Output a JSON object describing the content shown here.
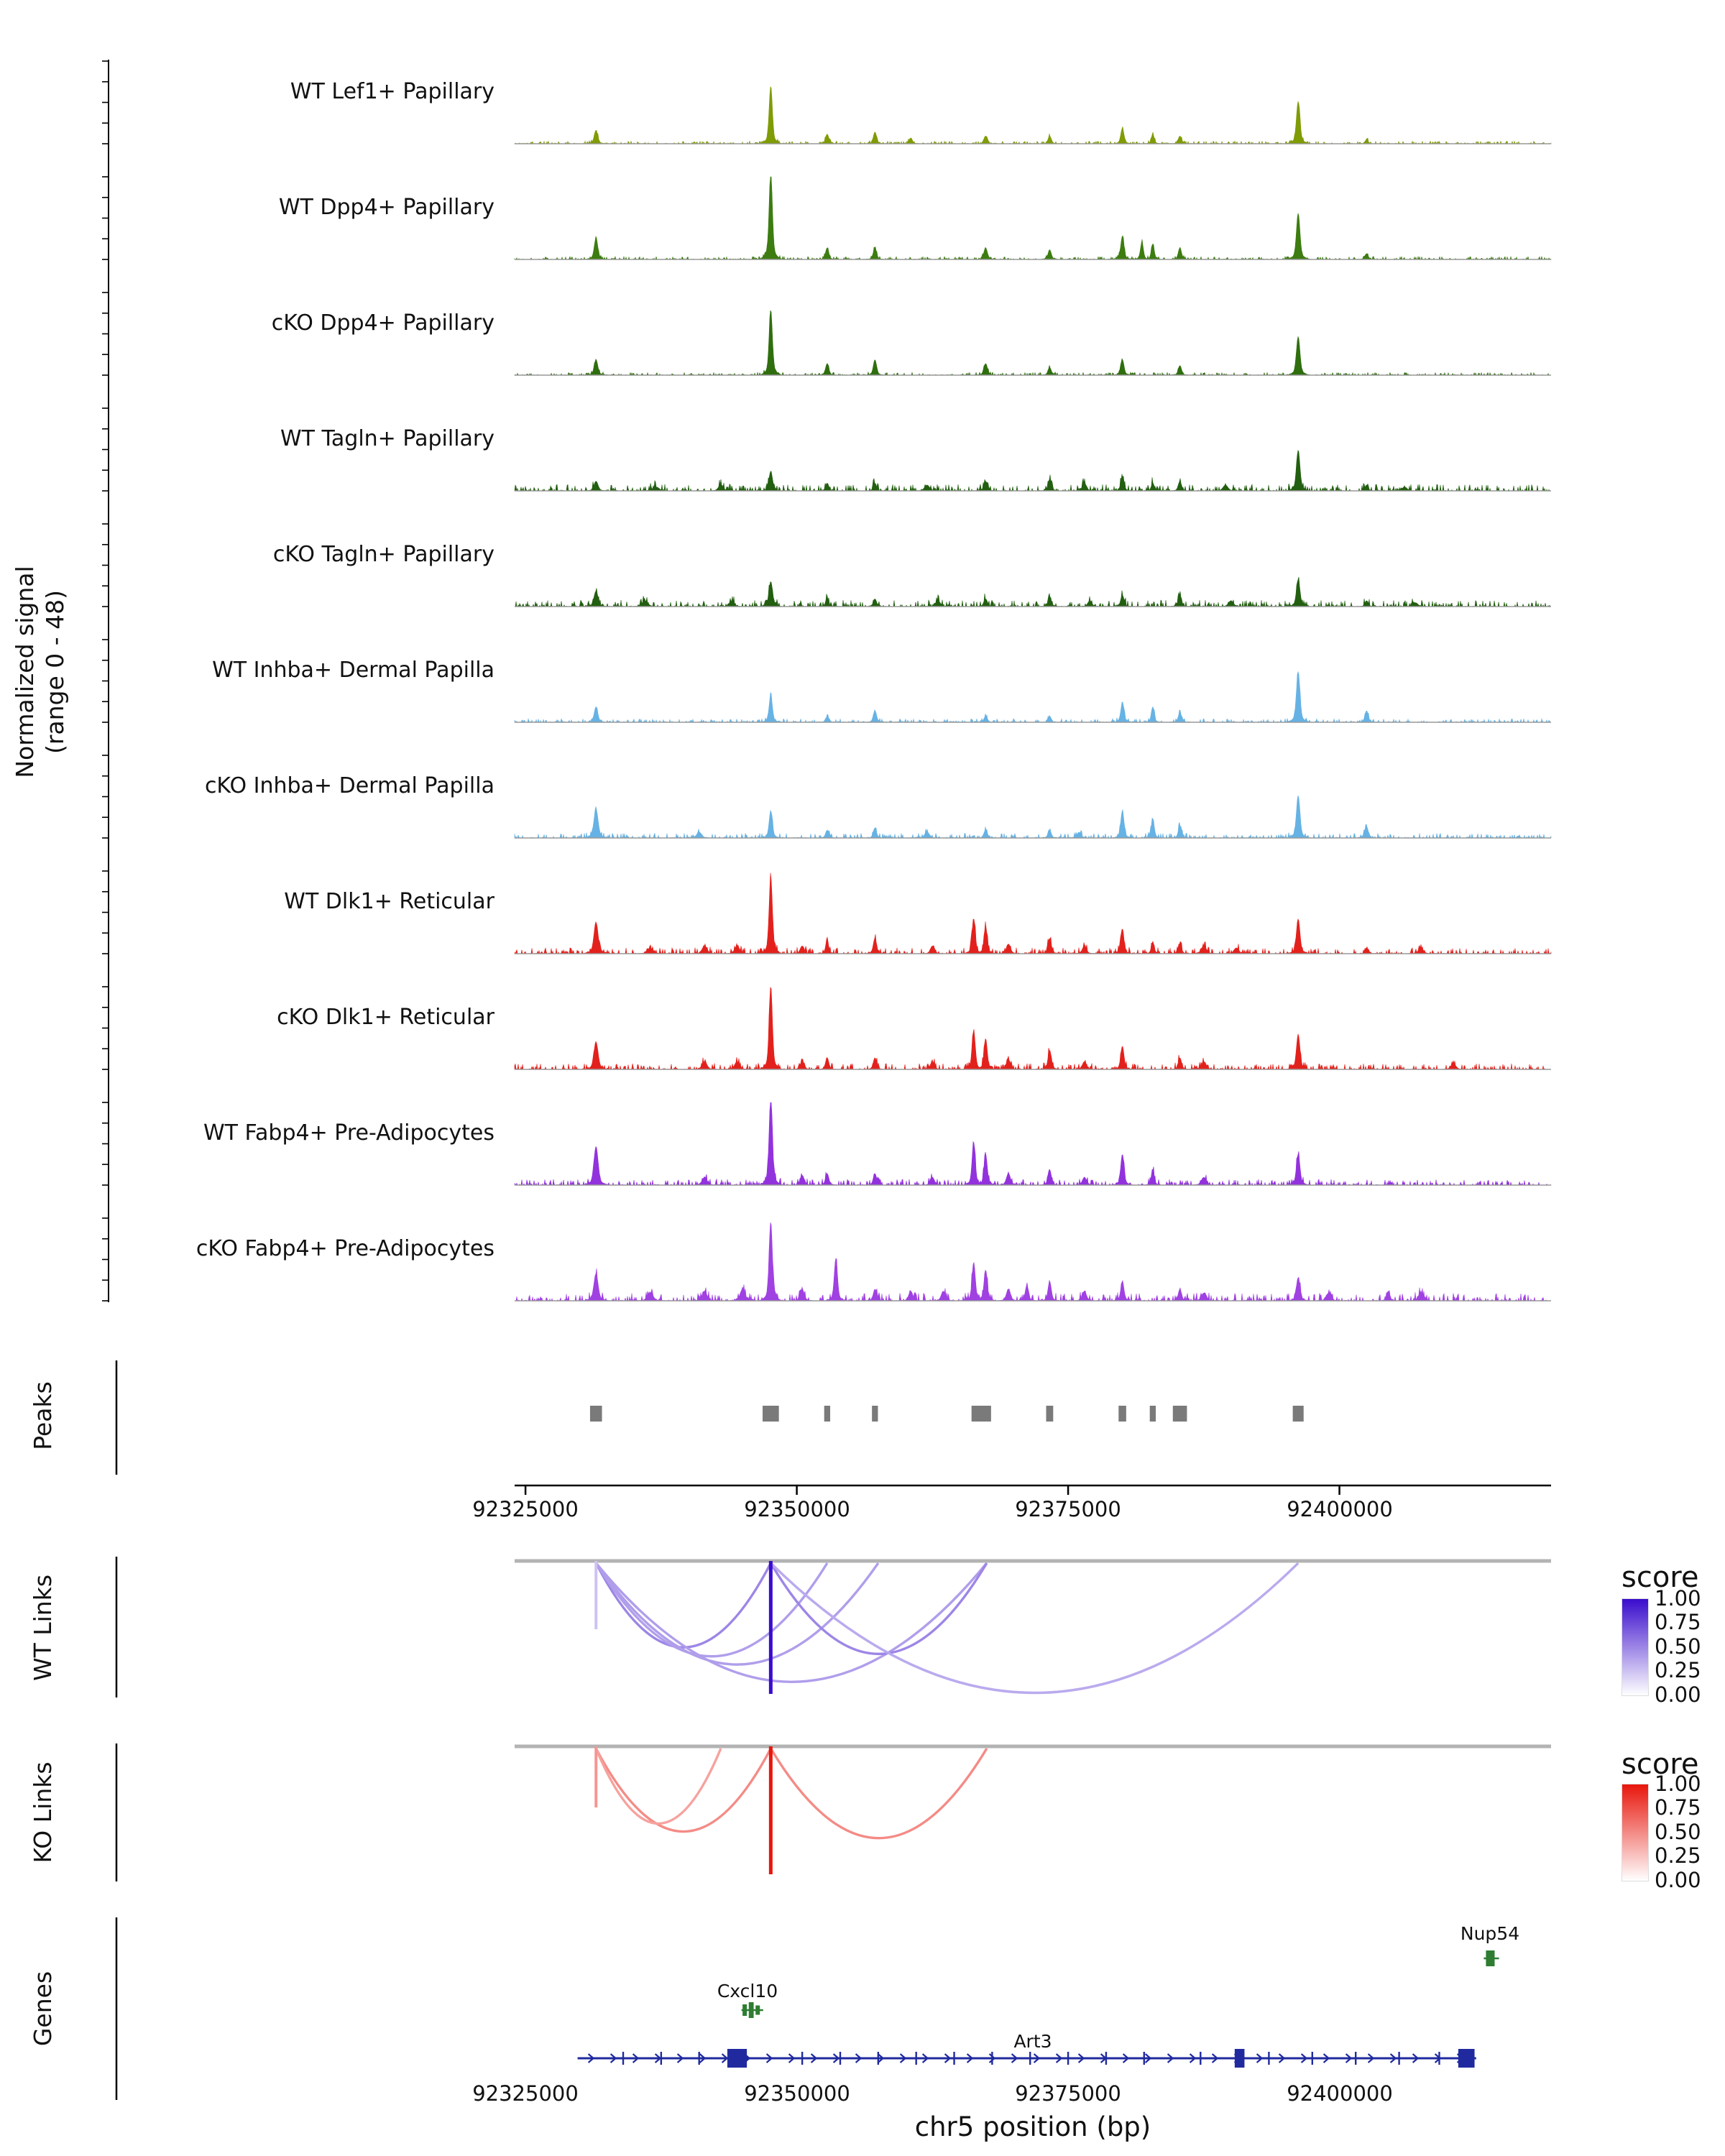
{
  "figure": {
    "background": "#ffffff",
    "y_axis_label_line1": "Normalized signal",
    "y_axis_label_line2": "(range 0 - 48)",
    "panel_labels": {
      "peaks": "Peaks",
      "wt_links": "WT Links",
      "ko_links": "KO Links",
      "genes": "Genes"
    },
    "x_axis_title": "chr5 position (bp)",
    "legend_title": "score"
  },
  "chart_data": {
    "type": "area",
    "variant": "genome-browser-coverage-tracks",
    "chrom": "chr5",
    "x_domain_bp": [
      92324000,
      92419500
    ],
    "x_ticks": [
      {
        "bp": 92325000,
        "label": "92325000"
      },
      {
        "bp": 92350000,
        "label": "92350000"
      },
      {
        "bp": 92375000,
        "label": "92375000"
      },
      {
        "bp": 92400000,
        "label": "92400000"
      }
    ],
    "signal_range": [
      0,
      48
    ],
    "tracks": [
      {
        "label": "WT Lef1+ Papillary",
        "color": "#7f9b06",
        "noise": 0.9,
        "peaks": [
          [
            92331500,
            7,
            220
          ],
          [
            92347600,
            30,
            200
          ],
          [
            92352800,
            5,
            200
          ],
          [
            92357200,
            6,
            200
          ],
          [
            92360500,
            3,
            200
          ],
          [
            92367400,
            4,
            220
          ],
          [
            92373300,
            4,
            200
          ],
          [
            92380000,
            8,
            200
          ],
          [
            92382800,
            5,
            180
          ],
          [
            92385300,
            4,
            200
          ],
          [
            92396200,
            22,
            220
          ],
          [
            92402500,
            2,
            200
          ]
        ]
      },
      {
        "label": "WT Dpp4+ Papillary",
        "color": "#3c7c10",
        "noise": 1.0,
        "peaks": [
          [
            92331500,
            11,
            220
          ],
          [
            92347600,
            46,
            200
          ],
          [
            92352800,
            6,
            200
          ],
          [
            92357200,
            6,
            200
          ],
          [
            92367400,
            6,
            220
          ],
          [
            92373300,
            5,
            200
          ],
          [
            92380000,
            12,
            200
          ],
          [
            92381800,
            9,
            180
          ],
          [
            92382800,
            8,
            180
          ],
          [
            92385300,
            6,
            200
          ],
          [
            92396200,
            24,
            220
          ],
          [
            92402500,
            3,
            200
          ]
        ]
      },
      {
        "label": "cKO Dpp4+ Papillary",
        "color": "#2f6e0e",
        "noise": 0.9,
        "peaks": [
          [
            92331500,
            8,
            220
          ],
          [
            92347600,
            34,
            200
          ],
          [
            92352800,
            6,
            200
          ],
          [
            92357200,
            8,
            200
          ],
          [
            92367400,
            6,
            220
          ],
          [
            92373300,
            4,
            200
          ],
          [
            92380000,
            8,
            200
          ],
          [
            92385300,
            5,
            200
          ],
          [
            92396200,
            20,
            220
          ]
        ]
      },
      {
        "label": "WT Tagln+ Papillary",
        "color": "#225f10",
        "noise": 2.2,
        "peaks": [
          [
            92331500,
            5,
            250
          ],
          [
            92337000,
            2,
            400
          ],
          [
            92343000,
            3,
            300
          ],
          [
            92347600,
            10,
            220
          ],
          [
            92352800,
            4,
            200
          ],
          [
            92357200,
            4,
            200
          ],
          [
            92362000,
            3,
            300
          ],
          [
            92367400,
            5,
            220
          ],
          [
            92373300,
            6,
            200
          ],
          [
            92376500,
            4,
            250
          ],
          [
            92380000,
            7,
            200
          ],
          [
            92382800,
            4,
            180
          ],
          [
            92385300,
            5,
            200
          ],
          [
            92389500,
            3,
            300
          ],
          [
            92396200,
            21,
            220
          ],
          [
            92402500,
            3,
            200
          ],
          [
            92406000,
            2,
            300
          ]
        ]
      },
      {
        "label": "cKO Tagln+ Papillary",
        "color": "#225f10",
        "noise": 2.2,
        "peaks": [
          [
            92331500,
            8,
            250
          ],
          [
            92336000,
            3,
            350
          ],
          [
            92344000,
            3,
            300
          ],
          [
            92347600,
            13,
            220
          ],
          [
            92352800,
            4,
            200
          ],
          [
            92357200,
            4,
            200
          ],
          [
            92363000,
            3,
            300
          ],
          [
            92367400,
            4,
            220
          ],
          [
            92373300,
            5,
            200
          ],
          [
            92377000,
            3,
            250
          ],
          [
            92380000,
            6,
            200
          ],
          [
            92385300,
            6,
            200
          ],
          [
            92390000,
            3,
            300
          ],
          [
            92396200,
            14,
            220
          ],
          [
            92402500,
            3,
            200
          ],
          [
            92407000,
            2,
            300
          ]
        ]
      },
      {
        "label": "WT Inhba+ Dermal Papilla",
        "color": "#66b2e4",
        "noise": 1.2,
        "peaks": [
          [
            92331500,
            8,
            220
          ],
          [
            92347600,
            14,
            200
          ],
          [
            92352800,
            3,
            200
          ],
          [
            92357200,
            6,
            200
          ],
          [
            92367400,
            3,
            220
          ],
          [
            92373300,
            3,
            200
          ],
          [
            92380000,
            10,
            200
          ],
          [
            92382800,
            8,
            180
          ],
          [
            92385300,
            5,
            200
          ],
          [
            92396200,
            26,
            220
          ],
          [
            92402500,
            6,
            200
          ]
        ]
      },
      {
        "label": "cKO Inhba+ Dermal Papilla",
        "color": "#66b2e4",
        "noise": 1.6,
        "peaks": [
          [
            92331500,
            15,
            260
          ],
          [
            92341000,
            3,
            300
          ],
          [
            92347600,
            14,
            200
          ],
          [
            92352800,
            4,
            200
          ],
          [
            92357200,
            5,
            200
          ],
          [
            92362000,
            3,
            300
          ],
          [
            92367400,
            4,
            220
          ],
          [
            92373300,
            4,
            200
          ],
          [
            92376000,
            3,
            250
          ],
          [
            92380000,
            14,
            200
          ],
          [
            92382800,
            10,
            180
          ],
          [
            92385300,
            6,
            200
          ],
          [
            92396200,
            22,
            220
          ],
          [
            92402500,
            6,
            200
          ]
        ]
      },
      {
        "label": "WT Dlk1+ Reticular",
        "color": "#e3211c",
        "noise": 2.0,
        "peaks": [
          [
            92331500,
            16,
            260
          ],
          [
            92336500,
            3,
            350
          ],
          [
            92341500,
            4,
            300
          ],
          [
            92344500,
            4,
            300
          ],
          [
            92347600,
            40,
            200
          ],
          [
            92350500,
            4,
            250
          ],
          [
            92352800,
            6,
            200
          ],
          [
            92357200,
            8,
            200
          ],
          [
            92362500,
            4,
            250
          ],
          [
            92366300,
            18,
            200
          ],
          [
            92367400,
            14,
            200
          ],
          [
            92369500,
            5,
            250
          ],
          [
            92373300,
            8,
            200
          ],
          [
            92376500,
            4,
            250
          ],
          [
            92380000,
            12,
            200
          ],
          [
            92382800,
            6,
            180
          ],
          [
            92385300,
            5,
            200
          ],
          [
            92387500,
            4,
            300
          ],
          [
            92390500,
            3,
            300
          ],
          [
            92396200,
            18,
            220
          ],
          [
            92402500,
            3,
            200
          ],
          [
            92407500,
            3,
            300
          ]
        ]
      },
      {
        "label": "cKO Dlk1+ Reticular",
        "color": "#e3211c",
        "noise": 2.0,
        "peaks": [
          [
            92331500,
            14,
            260
          ],
          [
            92341500,
            4,
            300
          ],
          [
            92344500,
            4,
            300
          ],
          [
            92347600,
            43,
            200
          ],
          [
            92350500,
            4,
            250
          ],
          [
            92352800,
            6,
            200
          ],
          [
            92357200,
            6,
            200
          ],
          [
            92362500,
            4,
            250
          ],
          [
            92366300,
            20,
            200
          ],
          [
            92367400,
            16,
            200
          ],
          [
            92369500,
            5,
            250
          ],
          [
            92373300,
            10,
            200
          ],
          [
            92376500,
            4,
            250
          ],
          [
            92380000,
            12,
            200
          ],
          [
            92385300,
            6,
            200
          ],
          [
            92387500,
            4,
            300
          ],
          [
            92396200,
            18,
            220
          ],
          [
            92410500,
            3,
            300
          ]
        ]
      },
      {
        "label": "WT Fabp4+ Pre-Adipocytes",
        "color": "#9232dd",
        "noise": 2.0,
        "peaks": [
          [
            92331500,
            20,
            260
          ],
          [
            92341500,
            4,
            300
          ],
          [
            92347600,
            45,
            200
          ],
          [
            92350500,
            5,
            250
          ],
          [
            92352800,
            6,
            200
          ],
          [
            92357200,
            6,
            200
          ],
          [
            92362500,
            4,
            250
          ],
          [
            92366300,
            22,
            200
          ],
          [
            92367400,
            16,
            200
          ],
          [
            92369500,
            6,
            250
          ],
          [
            92373300,
            8,
            200
          ],
          [
            92376500,
            4,
            250
          ],
          [
            92380000,
            16,
            200
          ],
          [
            92382800,
            8,
            180
          ],
          [
            92387500,
            4,
            300
          ],
          [
            92396200,
            16,
            220
          ]
        ]
      },
      {
        "label": "cKO Fabp4+ Pre-Adipocytes",
        "color": "#a041e2",
        "noise": 2.6,
        "peaks": [
          [
            92331500,
            14,
            260
          ],
          [
            92336500,
            4,
            350
          ],
          [
            92341500,
            5,
            300
          ],
          [
            92345000,
            6,
            300
          ],
          [
            92347600,
            41,
            200
          ],
          [
            92350500,
            6,
            250
          ],
          [
            92353600,
            22,
            200
          ],
          [
            92357200,
            6,
            200
          ],
          [
            92360500,
            5,
            250
          ],
          [
            92363500,
            5,
            250
          ],
          [
            92366300,
            20,
            200
          ],
          [
            92367400,
            16,
            200
          ],
          [
            92369500,
            6,
            250
          ],
          [
            92371200,
            8,
            200
          ],
          [
            92373300,
            10,
            200
          ],
          [
            92376500,
            5,
            250
          ],
          [
            92380000,
            10,
            200
          ],
          [
            92385300,
            6,
            200
          ],
          [
            92387500,
            4,
            300
          ],
          [
            92396200,
            12,
            220
          ],
          [
            92399000,
            4,
            300
          ],
          [
            92404500,
            5,
            200
          ],
          [
            92407500,
            4,
            300
          ]
        ]
      }
    ],
    "peak_boxes": {
      "color": "#7a7a7a",
      "regions": [
        [
          92331500,
          1100
        ],
        [
          92347600,
          1500
        ],
        [
          92352800,
          550
        ],
        [
          92357200,
          550
        ],
        [
          92367000,
          1800
        ],
        [
          92373300,
          650
        ],
        [
          92380000,
          700
        ],
        [
          92382800,
          550
        ],
        [
          92385300,
          1300
        ],
        [
          92396200,
          1000
        ]
      ]
    },
    "wt_links": {
      "max_color": "#3a0ccd",
      "verticals": [
        {
          "bp": 92347600,
          "score": 1.0,
          "len": 185
        },
        {
          "bp": 92331500,
          "score": 0.25,
          "len": 95
        }
      ],
      "arcs": [
        {
          "from": 92331500,
          "to": 92347600,
          "score": 0.5
        },
        {
          "from": 92331500,
          "to": 92352800,
          "score": 0.4
        },
        {
          "from": 92331500,
          "to": 92357500,
          "score": 0.4
        },
        {
          "from": 92331500,
          "to": 92367500,
          "score": 0.4
        },
        {
          "from": 92347600,
          "to": 92367500,
          "score": 0.5
        },
        {
          "from": 92347600,
          "to": 92396200,
          "score": 0.35
        }
      ]
    },
    "ko_links": {
      "max_color": "#e8160c",
      "verticals": [
        {
          "bp": 92347600,
          "score": 1.0,
          "len": 178
        },
        {
          "bp": 92331500,
          "score": 0.45,
          "len": 85
        }
      ],
      "arcs": [
        {
          "from": 92331500,
          "to": 92347600,
          "score": 0.5
        },
        {
          "from": 92331500,
          "to": 92343000,
          "score": 0.4
        },
        {
          "from": 92347600,
          "to": 92367500,
          "score": 0.5
        }
      ]
    },
    "genes": [
      {
        "name": "Nup54",
        "color": "#2e7d32",
        "row": "top",
        "start": 92413300,
        "end": 92414700,
        "boxes": [
          [
            92413900,
            800,
            22
          ]
        ]
      },
      {
        "name": "Cxcl10",
        "color": "#2e7d32",
        "row": "mid",
        "start": 92344900,
        "end": 92346900,
        "boxes": [
          [
            92345200,
            350,
            16
          ],
          [
            92345800,
            450,
            22
          ],
          [
            92346400,
            300,
            13
          ]
        ]
      },
      {
        "name": "Art3",
        "color": "#202a9e",
        "row": "main",
        "strand": "+",
        "start": 92329800,
        "end": 92412600,
        "big_exons": [
          [
            92344500,
            1800
          ],
          [
            92390800,
            900
          ],
          [
            92411700,
            1500
          ]
        ],
        "exon_ticks": [
          92334000,
          92337500,
          92341000,
          92350500,
          92354000,
          92357500,
          92361000,
          92364500,
          92368000,
          92371500,
          92375000,
          92378500,
          92382000,
          92387200,
          92393500,
          92397500,
          92401500,
          92405500,
          92409200
        ]
      }
    ],
    "legend_ticks": [
      "1.00",
      "0.75",
      "0.50",
      "0.25",
      "0.00"
    ]
  }
}
